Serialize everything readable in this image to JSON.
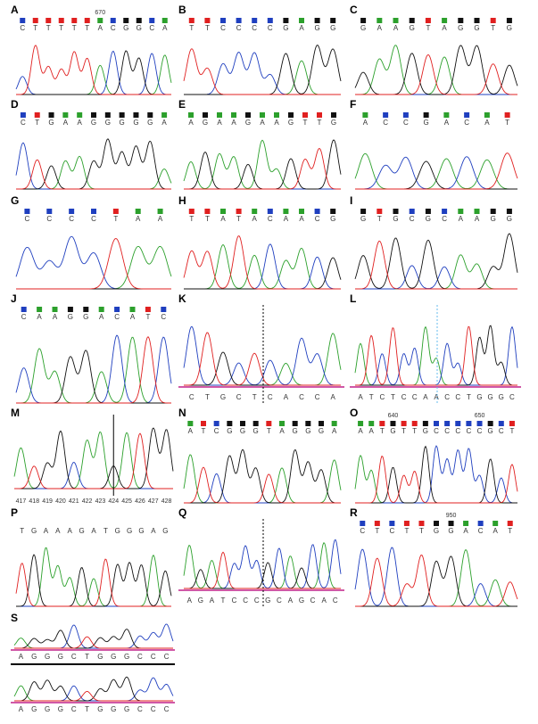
{
  "panels": [
    {
      "label": "A",
      "tracks": [
        [
          "C",
          "T",
          "T",
          "T",
          "T",
          "T",
          "A",
          "C",
          "G",
          "G",
          "C",
          "A"
        ]
      ],
      "markers": [
        "670"
      ]
    },
    {
      "label": "B",
      "tracks": [
        [
          "T",
          "T",
          "C",
          "C",
          "C",
          "C",
          "G",
          "A",
          "G",
          "G"
        ]
      ]
    },
    {
      "label": "C",
      "tracks": [
        [
          "G",
          "A",
          "A",
          "G",
          "T",
          "A",
          "G",
          "G",
          "T",
          "G"
        ]
      ]
    },
    {
      "label": "D",
      "tracks": [
        [
          "C",
          "T",
          "G",
          "A",
          "A",
          "G",
          "G",
          "G",
          "G",
          "G",
          "A"
        ]
      ]
    },
    {
      "label": "E",
      "tracks": [
        [
          "A",
          "G",
          "A",
          "A",
          "G",
          "A",
          "A",
          "G",
          "T",
          "T",
          "G"
        ]
      ]
    },
    {
      "label": "F",
      "tracks": [
        [
          "A",
          "C",
          "C",
          "G",
          "A",
          "C",
          "A",
          "T"
        ]
      ]
    },
    {
      "label": "G",
      "tracks": [
        [
          "C",
          "C",
          "C",
          "C",
          "T",
          "A",
          "A"
        ]
      ]
    },
    {
      "label": "H",
      "tracks": [
        [
          "T",
          "T",
          "A",
          "T",
          "A",
          "C",
          "A",
          "A",
          "C",
          "G"
        ]
      ]
    },
    {
      "label": "I",
      "tracks": [
        [
          "G",
          "T",
          "G",
          "C",
          "G",
          "C",
          "A",
          "A",
          "G",
          "G"
        ]
      ]
    },
    {
      "label": "J",
      "tracks": [
        [
          "C",
          "A",
          "A",
          "G",
          "G",
          "A",
          "C",
          "A",
          "T",
          "C"
        ]
      ]
    },
    {
      "label": "K",
      "tracks": [
        [
          "C",
          "T",
          "G",
          "C",
          "T",
          "C",
          "A",
          "C",
          "C",
          "A"
        ]
      ]
    },
    {
      "label": "L",
      "tracks": [
        [
          "A",
          "T",
          "C",
          "T",
          "C",
          "C",
          "A",
          "A",
          "C",
          "C",
          "T",
          "G",
          "G",
          "G",
          "C"
        ]
      ]
    },
    {
      "label": "M",
      "tracks": [],
      "positions": [
        "417",
        "418",
        "419",
        "420",
        "421",
        "422",
        "423",
        "424",
        "425",
        "426",
        "427",
        "428"
      ]
    },
    {
      "label": "N",
      "tracks": [
        [
          "A",
          "T",
          "C",
          "G",
          "G",
          "G",
          "T",
          "A",
          "G",
          "G",
          "G",
          "A"
        ]
      ]
    },
    {
      "label": "O",
      "tracks": [
        [
          "A",
          "A",
          "T",
          "G",
          "T",
          "T",
          "G",
          "C",
          "C",
          "C",
          "C",
          "C",
          "G",
          "C",
          "T"
        ]
      ],
      "markers": [
        "640",
        "650"
      ]
    },
    {
      "label": "P",
      "tracks": [
        [
          "T",
          "G",
          "A",
          "A",
          "A",
          "G",
          "A",
          "T",
          "G",
          "G",
          "G",
          "A",
          "G"
        ]
      ]
    },
    {
      "label": "Q",
      "tracks": [
        [
          "A",
          "G",
          "A",
          "T",
          "C",
          "C",
          "C",
          "G",
          "C",
          "A",
          "G",
          "C",
          "A",
          "C"
        ]
      ]
    },
    {
      "label": "R",
      "tracks": [
        [
          "C",
          "T",
          "C",
          "T",
          "T",
          "G",
          "G",
          "A",
          "C",
          "A",
          "T"
        ]
      ],
      "markers": [
        "950"
      ]
    },
    {
      "label": "S",
      "tracks": [
        [
          "A",
          "G",
          "G",
          "G",
          "C",
          "T",
          "G",
          "G",
          "G",
          "C",
          "C",
          "C"
        ],
        [
          "A",
          "G",
          "G",
          "G",
          "C",
          "T",
          "G",
          "G",
          "G",
          "C",
          "C",
          "C"
        ]
      ]
    }
  ]
}
